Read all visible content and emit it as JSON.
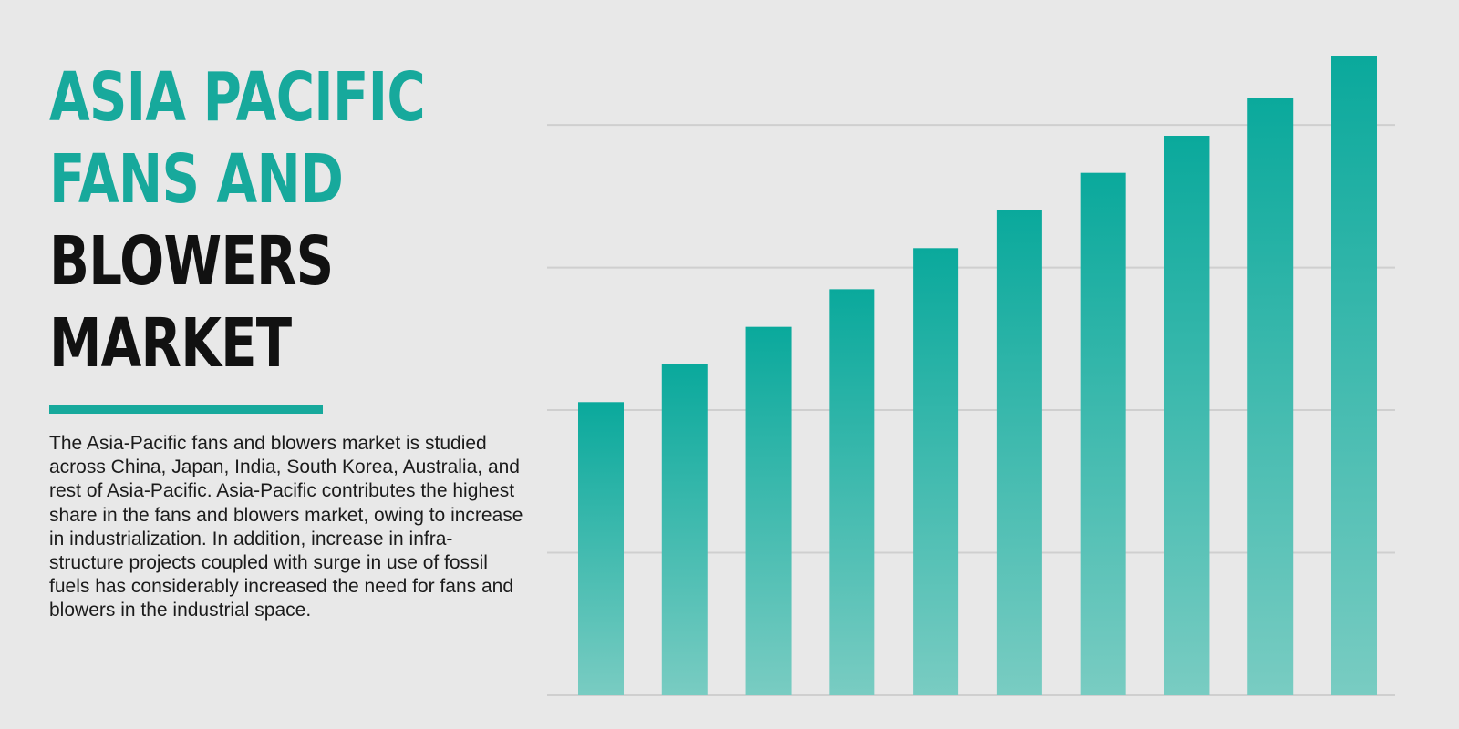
{
  "header": {
    "title_lines": [
      {
        "text": "ASIA PACIFIC",
        "style": "accent"
      },
      {
        "text": "FANS AND",
        "style": "accent"
      },
      {
        "text": "BLOWERS",
        "style": "dark"
      },
      {
        "text": "MARKET",
        "style": "dark"
      }
    ]
  },
  "description": "The Asia-Pacific fans and blowers market is studied across China, Japan, India, South Korea, Australia, and rest of Asia-Pacific. Asia-Pacific contributes the highest share in the fans and blowers market, owing to increase in industrialization. In addition, increase in infra-structure projects coupled with surge in use of fossil fuels has considerably increased the need for fans and blowers in the industrial space.",
  "colors": {
    "accent": "#17a99c",
    "bar_top": "#0aa99c",
    "bar_bottom": "#79ccc2",
    "grid": "#cfcfcf",
    "background": "#e8e8e8"
  },
  "chart_data": {
    "type": "bar",
    "title": "",
    "xlabel": "",
    "ylabel": "",
    "categories": [
      "",
      "",
      "",
      "",
      "",
      "",
      "",
      "",
      "",
      ""
    ],
    "values": [
      51.4,
      58.0,
      64.6,
      71.2,
      78.4,
      85.0,
      91.6,
      98.1,
      104.8,
      112.0
    ],
    "ylim": [
      0,
      112
    ],
    "gridlines": [
      0,
      25,
      50,
      75,
      100
    ],
    "grid": true,
    "legend": "none"
  }
}
